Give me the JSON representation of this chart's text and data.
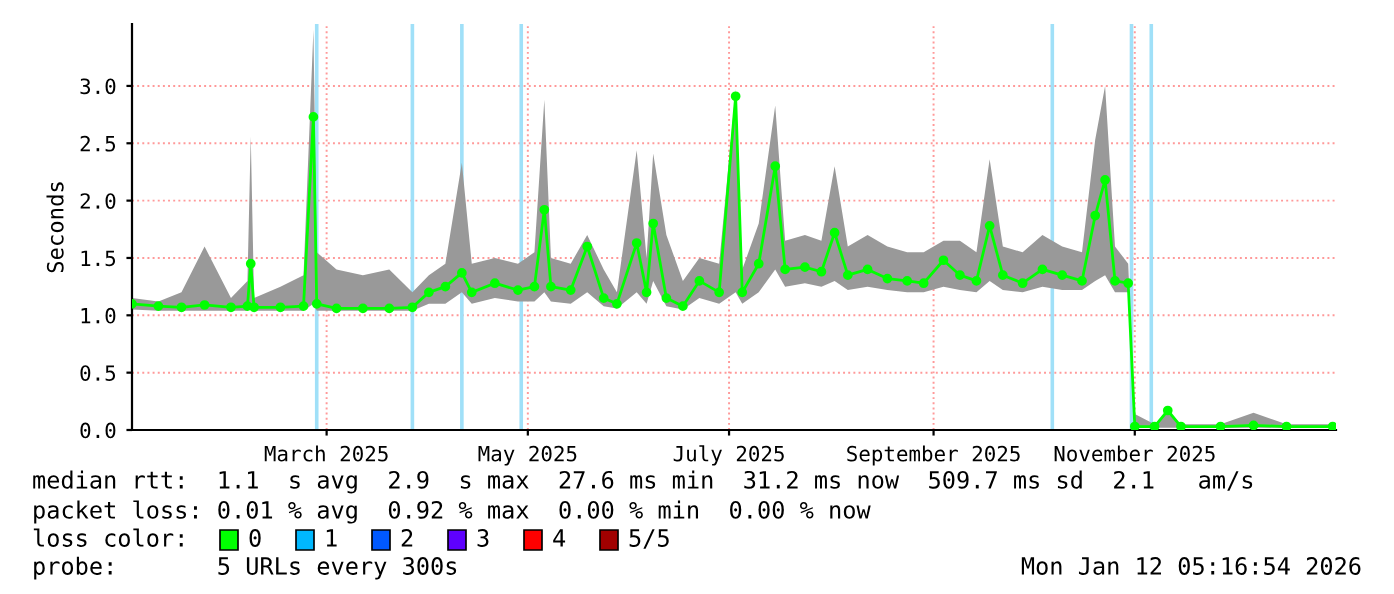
{
  "chart_data": {
    "type": "line",
    "ylabel": "Seconds",
    "xlim": [
      "2025-01-01",
      "2026-01-01"
    ],
    "xticks": [
      {
        "value": "2025-03-01",
        "label": "March 2025"
      },
      {
        "value": "2025-05-01",
        "label": "May 2025"
      },
      {
        "value": "2025-07-01",
        "label": "July 2025"
      },
      {
        "value": "2025-09-01",
        "label": "September 2025"
      },
      {
        "value": "2025-11-01",
        "label": "November 2025"
      }
    ],
    "ylim": [
      0,
      3.54
    ],
    "yticks": [
      {
        "value": 0,
        "label": "0.0"
      },
      {
        "value": 0.5,
        "label": "0.5"
      },
      {
        "value": 1,
        "label": "1.0"
      },
      {
        "value": 1.5,
        "label": "1.5"
      },
      {
        "value": 2,
        "label": "2.0"
      },
      {
        "value": 2.5,
        "label": "2.5"
      },
      {
        "value": 3,
        "label": "3.0"
      }
    ],
    "grid": true,
    "marker": "circle",
    "line_style": "solid",
    "x": [
      "2025-01-01",
      "2025-01-09",
      "2025-01-16",
      "2025-01-23",
      "2025-01-31",
      "2025-02-05",
      "2025-02-06",
      "2025-02-07",
      "2025-02-15",
      "2025-02-22",
      "2025-02-25",
      "2025-02-26",
      "2025-03-04",
      "2025-03-12",
      "2025-03-20",
      "2025-03-27",
      "2025-04-01",
      "2025-04-06",
      "2025-04-11",
      "2025-04-14",
      "2025-04-21",
      "2025-04-28",
      "2025-05-03",
      "2025-05-06",
      "2025-05-08",
      "2025-05-14",
      "2025-05-19",
      "2025-05-24",
      "2025-05-28",
      "2025-06-03",
      "2025-06-06",
      "2025-06-08",
      "2025-06-12",
      "2025-06-17",
      "2025-06-22",
      "2025-06-28",
      "2025-07-03",
      "2025-07-05",
      "2025-07-10",
      "2025-07-15",
      "2025-07-18",
      "2025-07-24",
      "2025-07-29",
      "2025-08-02",
      "2025-08-06",
      "2025-08-12",
      "2025-08-18",
      "2025-08-24",
      "2025-08-29",
      "2025-09-04",
      "2025-09-09",
      "2025-09-14",
      "2025-09-18",
      "2025-09-22",
      "2025-09-28",
      "2025-10-04",
      "2025-10-10",
      "2025-10-16",
      "2025-10-20",
      "2025-10-23",
      "2025-10-26",
      "2025-10-30",
      "2025-11-01",
      "2025-11-07",
      "2025-11-11",
      "2025-11-15",
      "2025-11-27",
      "2025-12-07",
      "2025-12-17",
      "2025-12-31"
    ],
    "series": [
      {
        "color": "#00ff00",
        "values": [
          1.1,
          1.08,
          1.07,
          1.09,
          1.07,
          1.08,
          1.45,
          1.07,
          1.07,
          1.08,
          2.73,
          1.1,
          1.06,
          1.06,
          1.06,
          1.07,
          1.2,
          1.25,
          1.37,
          1.2,
          1.28,
          1.22,
          1.25,
          1.92,
          1.25,
          1.22,
          1.6,
          1.15,
          1.1,
          1.63,
          1.2,
          1.8,
          1.15,
          1.08,
          1.3,
          1.2,
          2.91,
          1.2,
          1.45,
          2.3,
          1.4,
          1.42,
          1.38,
          1.72,
          1.35,
          1.4,
          1.32,
          1.3,
          1.28,
          1.48,
          1.35,
          1.3,
          1.78,
          1.35,
          1.28,
          1.4,
          1.35,
          1.3,
          1.87,
          2.18,
          1.3,
          1.28,
          0.03,
          0.03,
          0.17,
          0.03,
          0.03,
          0.04,
          0.03,
          0.03
        ],
        "lower": [
          1.05,
          1.04,
          1.04,
          1.04,
          1.04,
          1.04,
          1.1,
          1.04,
          1.04,
          1.04,
          1.1,
          1.04,
          1.04,
          1.04,
          1.04,
          1.04,
          1.1,
          1.1,
          1.2,
          1.1,
          1.15,
          1.12,
          1.12,
          1.2,
          1.12,
          1.1,
          1.2,
          1.08,
          1.06,
          1.2,
          1.1,
          1.3,
          1.08,
          1.05,
          1.15,
          1.1,
          1.2,
          1.1,
          1.2,
          1.4,
          1.25,
          1.28,
          1.25,
          1.3,
          1.22,
          1.25,
          1.22,
          1.2,
          1.2,
          1.25,
          1.22,
          1.2,
          1.3,
          1.22,
          1.2,
          1.25,
          1.22,
          1.22,
          1.3,
          1.35,
          1.2,
          1.2,
          0.02,
          0.02,
          0.02,
          0.02,
          0.02,
          0.02,
          0.02,
          0.02
        ],
        "upper": [
          1.15,
          1.12,
          1.2,
          1.6,
          1.15,
          1.3,
          2.56,
          1.15,
          1.25,
          1.35,
          3.49,
          1.55,
          1.4,
          1.35,
          1.4,
          1.2,
          1.35,
          1.45,
          2.33,
          1.45,
          1.5,
          1.45,
          1.55,
          2.88,
          1.5,
          1.45,
          1.7,
          1.4,
          1.2,
          2.44,
          1.5,
          2.41,
          1.7,
          1.3,
          1.5,
          1.45,
          2.97,
          1.4,
          1.8,
          2.83,
          1.65,
          1.7,
          1.65,
          2.3,
          1.6,
          1.7,
          1.6,
          1.55,
          1.55,
          1.65,
          1.65,
          1.55,
          2.36,
          1.6,
          1.55,
          1.7,
          1.6,
          1.55,
          2.53,
          3.0,
          1.6,
          1.45,
          0.14,
          0.05,
          0.17,
          0.05,
          0.05,
          0.15,
          0.05,
          0.05
        ]
      }
    ],
    "ref_lines": [
      {
        "axis": "x",
        "value": "2025-02-26",
        "color": "#a0e0f8"
      },
      {
        "axis": "x",
        "value": "2025-03-27",
        "color": "#a0e0f8"
      },
      {
        "axis": "x",
        "value": "2025-04-11",
        "color": "#a0e0f8"
      },
      {
        "axis": "x",
        "value": "2025-04-29",
        "color": "#a0e0f8"
      },
      {
        "axis": "x",
        "value": "2025-10-07",
        "color": "#a0e0f8"
      },
      {
        "axis": "x",
        "value": "2025-10-31",
        "color": "#a0e0f8"
      },
      {
        "axis": "x",
        "value": "2025-11-06",
        "color": "#a0e0f8"
      }
    ],
    "annotations": [
      "median rtt:  1.1  s avg  2.9  s max  27.6 ms min  31.2 ms now  509.7 ms sd  2.1   am/s",
      "packet loss: 0.01 % avg  0.92 % max  0.00 % min  0.00 % now",
      "loss color:  0 1 2 3 4 5/5",
      "probe:       5 URLs every 300s",
      "Mon Jan 12 05:16:54 2026"
    ]
  }
}
